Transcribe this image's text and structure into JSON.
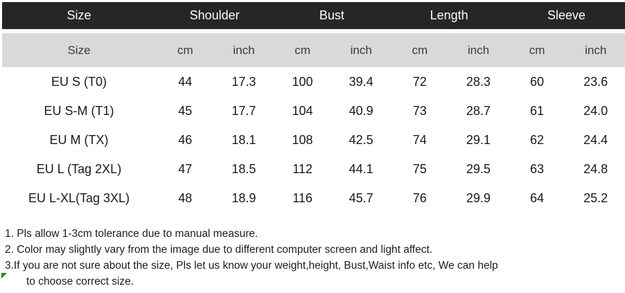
{
  "table": {
    "group_headers": {
      "size": "Size",
      "shoulder": "Shoulder",
      "bust": "Bust",
      "length": "Length",
      "sleeve": "Sleeve"
    },
    "unit_headers": [
      "Size",
      "cm",
      "inch",
      "cm",
      "inch",
      "cm",
      "inch",
      "cm",
      "inch"
    ],
    "rows": [
      {
        "size": "EU S (T0)",
        "values": [
          "44",
          "17.3",
          "100",
          "39.4",
          "72",
          "28.3",
          "60",
          "23.6"
        ]
      },
      {
        "size": "EU S-M (T1)",
        "values": [
          "45",
          "17.7",
          "104",
          "40.9",
          "73",
          "28.7",
          "61",
          "24.0"
        ]
      },
      {
        "size": "EU M (TX)",
        "values": [
          "46",
          "18.1",
          "108",
          "42.5",
          "74",
          "29.1",
          "62",
          "24.4"
        ]
      },
      {
        "size": "EU L (Tag 2XL)",
        "values": [
          "47",
          "18.5",
          "112",
          "44.1",
          "75",
          "29.5",
          "63",
          "24.8"
        ]
      },
      {
        "size": "EU L-XL(Tag 3XL)",
        "values": [
          "48",
          "18.9",
          "116",
          "45.7",
          "76",
          "29.9",
          "64",
          "25.2"
        ]
      }
    ]
  },
  "notes": [
    "1. Pls allow 1-3cm tolerance due to manual measure.",
    "2. Color may slightly vary from the image due to different computer screen and light affect.",
    "3.If you are not sure about the size, Pls let us know your weight,height, Bust,Waist info etc, We can help",
    "to choose correct size."
  ],
  "colors": {
    "header_bg": "#262626",
    "header_text": "#ffffff",
    "subheader_bg": "#d9d9d9",
    "body_text": "#191919",
    "comment_marker": "#2e7d32"
  }
}
